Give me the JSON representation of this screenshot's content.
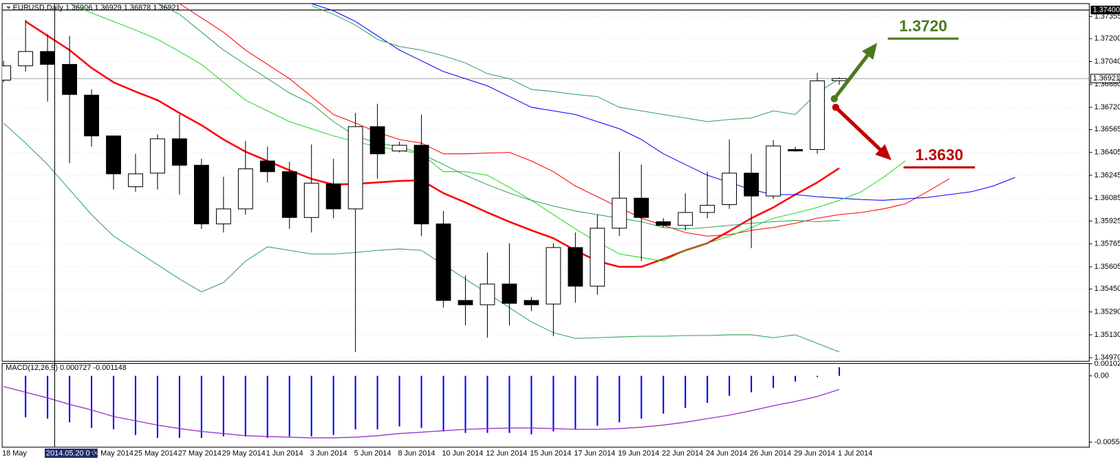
{
  "chart_data": {
    "type": "candlestick",
    "title": "EURUSD,Daily",
    "categories": [
      "18 May",
      null,
      "2014.05.20 0:00",
      null,
      "22 May 2014",
      null,
      "25 May 2014",
      null,
      "27 May 2014",
      null,
      "29 May 2014",
      null,
      "1 Jun 2014",
      null,
      "3 Jun 2014",
      null,
      "5 Jun 2014",
      null,
      "8 Jun 2014",
      null,
      "10 Jun 2014",
      null,
      "12 Jun 2014",
      null,
      "15 Jun 2014",
      null,
      "17 Jun 2014",
      null,
      "19 Jun 2014",
      null,
      "22 Jun 2014",
      null,
      "24 Jun 2014",
      null,
      "26 Jun 2014",
      null,
      "29 Jun 2014",
      null,
      "1 Jul 2014",
      null,
      null,
      null,
      null,
      null,
      null,
      null,
      null
    ],
    "crosshair_index": 2,
    "ohlc": {
      "open": [
        1.3691,
        1.3701,
        1.3711,
        1.3702,
        1.36805,
        1.3652,
        1.36165,
        1.3626,
        1.365,
        1.36315,
        1.35905,
        1.3601,
        1.36345,
        1.3627,
        1.3595,
        1.36185,
        1.3601,
        1.36585,
        1.36415,
        1.36455,
        1.35905,
        1.3537,
        1.3534,
        1.35485,
        1.3537,
        1.35345,
        1.3574,
        1.3547,
        1.35875,
        1.36085,
        1.3592,
        1.35895,
        1.35985,
        1.3604,
        1.3626,
        1.361,
        1.36425,
        1.36425,
        1.36906,
        null,
        null,
        null,
        null,
        null,
        null,
        null,
        null
      ],
      "high": [
        1.37045,
        1.3733,
        1.3723,
        1.3722,
        1.36845,
        1.3652,
        1.36395,
        1.3653,
        1.3667,
        1.3636,
        1.36235,
        1.36485,
        1.36445,
        1.3634,
        1.3646,
        1.3636,
        1.3668,
        1.36745,
        1.3648,
        1.3667,
        1.35995,
        1.35545,
        1.35705,
        1.3577,
        1.35395,
        1.3577,
        1.35845,
        1.3597,
        1.3641,
        1.3632,
        1.35945,
        1.3612,
        1.3627,
        1.36495,
        1.36395,
        1.3649,
        1.36445,
        1.3696,
        1.36929,
        null,
        null,
        null,
        null,
        null,
        null,
        null,
        null
      ],
      "low": [
        1.36895,
        1.3697,
        1.3676,
        1.3633,
        1.36445,
        1.36145,
        1.3613,
        1.36145,
        1.3611,
        1.3587,
        1.35845,
        1.3597,
        1.36195,
        1.3587,
        1.35845,
        1.35945,
        1.3501,
        1.3622,
        1.36405,
        1.3582,
        1.3532,
        1.35195,
        1.3511,
        1.35195,
        1.35295,
        1.3512,
        1.35355,
        1.3541,
        1.3582,
        1.35645,
        1.3588,
        1.3586,
        1.35945,
        1.3601,
        1.35735,
        1.3608,
        1.3641,
        1.36395,
        1.36878,
        null,
        null,
        null,
        null,
        null,
        null,
        null,
        null
      ],
      "close": [
        1.3701,
        1.3711,
        1.3702,
        1.3681,
        1.3652,
        1.36255,
        1.36255,
        1.365,
        1.36315,
        1.35905,
        1.3601,
        1.3629,
        1.3627,
        1.3595,
        1.3619,
        1.3601,
        1.36585,
        1.36395,
        1.36455,
        1.35905,
        1.3537,
        1.3534,
        1.35485,
        1.3535,
        1.3534,
        1.3574,
        1.3547,
        1.35875,
        1.36085,
        1.3595,
        1.35895,
        1.35985,
        1.36035,
        1.3626,
        1.361,
        1.3645,
        1.36415,
        1.36905,
        1.36921,
        null,
        null,
        null,
        null,
        null,
        null,
        null,
        null
      ],
      "up_color": "#ffffff",
      "down_color": "#000000",
      "outline": "#000000"
    },
    "series": [
      {
        "color": "#ff0000",
        "width": 2.5,
        "values": [
          null,
          1.3732,
          1.3722,
          1.3712,
          1.36995,
          1.36895,
          1.3683,
          1.3677,
          1.3668,
          1.36595,
          1.36495,
          1.3641,
          1.36345,
          1.3628,
          1.3622,
          1.3618,
          1.36185,
          1.36195,
          1.36205,
          1.3621,
          1.3612,
          1.36055,
          1.35985,
          1.3592,
          1.3586,
          1.35805,
          1.3572,
          1.35645,
          1.35605,
          1.35605,
          1.3566,
          1.3572,
          1.3577,
          1.35855,
          1.35945,
          1.3602,
          1.3611,
          1.36195,
          1.36295,
          null,
          null,
          null,
          null,
          null,
          null,
          null,
          null
        ]
      },
      {
        "color": "#ff0000",
        "width": 1,
        "values": [
          null,
          null,
          null,
          null,
          null,
          null,
          null,
          null,
          1.37445,
          1.37345,
          1.37245,
          1.3712,
          1.3702,
          1.3692,
          1.36795,
          1.3667,
          1.3661,
          1.36545,
          1.36495,
          1.3647,
          1.36395,
          1.36395,
          1.364,
          1.36405,
          1.36345,
          1.3627,
          1.3617,
          1.36095,
          1.3602,
          1.35945,
          1.35895,
          1.35845,
          1.3582,
          1.3583,
          1.3586,
          1.3588,
          1.3591,
          1.35945,
          1.3597,
          1.35985,
          1.3601,
          1.36045,
          1.3613,
          1.3622,
          null,
          null,
          null
        ]
      },
      {
        "color": "#0000ff",
        "width": 1,
        "values": [
          null,
          null,
          null,
          null,
          null,
          null,
          null,
          null,
          null,
          null,
          null,
          null,
          null,
          null,
          1.37445,
          1.37395,
          1.3732,
          1.3722,
          1.3712,
          1.37045,
          1.3697,
          1.3692,
          1.3687,
          1.36795,
          1.3672,
          1.36695,
          1.3667,
          1.3662,
          1.3657,
          1.36495,
          1.36395,
          1.3632,
          1.36245,
          1.36195,
          1.36145,
          1.3611,
          1.3611,
          1.36095,
          1.36085,
          1.36075,
          1.3607,
          1.3608,
          1.3609,
          1.3611,
          1.3613,
          1.3617,
          1.3623
        ]
      },
      {
        "color": "#1fd81f",
        "width": 1,
        "values": [
          null,
          null,
          null,
          1.37445,
          1.3738,
          1.3732,
          1.3726,
          1.37195,
          1.3711,
          1.3702,
          1.36895,
          1.3677,
          1.36695,
          1.3662,
          1.3657,
          1.3652,
          1.3648,
          1.36445,
          1.3642,
          1.36395,
          1.3627,
          1.3627,
          1.36245,
          1.3616,
          1.3607,
          1.3597,
          1.3587,
          1.3578,
          1.35695,
          1.3567,
          1.35645,
          1.3572,
          1.3577,
          1.3582,
          1.3588,
          1.35945,
          1.3598,
          1.3602,
          1.3607,
          1.3613,
          1.3623,
          1.36345,
          null,
          null,
          null,
          null,
          null
        ]
      },
      {
        "color": "#2ea257",
        "width": 1,
        "values": [
          null,
          null,
          null,
          null,
          null,
          null,
          null,
          1.37445,
          1.3737,
          1.37245,
          1.3712,
          1.3702,
          1.3692,
          1.3682,
          1.36745,
          1.3662,
          1.3652,
          1.3647,
          1.36445,
          1.36395,
          1.3632,
          1.36245,
          1.3618,
          1.3612,
          1.3607,
          1.3603,
          1.35995,
          1.3597,
          1.35945,
          1.3592,
          1.3588,
          1.3587,
          1.3588,
          1.35895,
          1.3591,
          1.3592,
          1.3593,
          1.3592,
          1.3593,
          null,
          null,
          null,
          null,
          null,
          null,
          null,
          null
        ]
      },
      {
        "color": "#2ea257",
        "width": 1,
        "values": [
          null,
          null,
          null,
          null,
          null,
          null,
          null,
          null,
          null,
          null,
          null,
          null,
          null,
          null,
          1.3743,
          1.3737,
          1.37295,
          1.37195,
          1.37145,
          1.3712,
          1.3708,
          1.3703,
          1.36955,
          1.3692,
          1.36845,
          1.3683,
          1.3681,
          1.36795,
          1.3672,
          1.36695,
          1.3667,
          1.36645,
          1.3662,
          1.36635,
          1.36645,
          1.36695,
          1.3667,
          1.3682,
          1.3692,
          null,
          null,
          null,
          null,
          null,
          null,
          null,
          null
        ]
      },
      {
        "color": "#2ea257",
        "width": 1,
        "values": [
          1.3661,
          1.3647,
          1.3632,
          1.36145,
          1.3597,
          1.3582,
          1.3572,
          1.3562,
          1.3552,
          1.3543,
          1.35495,
          1.35645,
          1.35745,
          1.3572,
          1.35695,
          1.35695,
          1.35705,
          1.3572,
          1.3573,
          1.3572,
          1.3562,
          1.3552,
          1.3542,
          1.3532,
          1.3522,
          1.35145,
          1.35105,
          1.3511,
          1.35115,
          1.3512,
          1.3512,
          1.35125,
          1.35125,
          1.3513,
          1.3513,
          1.3511,
          1.3513,
          1.3507,
          1.3501,
          null,
          null,
          null,
          null,
          null,
          null,
          null,
          null
        ]
      }
    ],
    "ylim": [
      1.34945,
      1.37445
    ],
    "yticks": [
      1.37355,
      {
        "value": 1.372,
        "label": "1.37200"
      },
      {
        "value": 1.3704,
        "label": "1.37040"
      },
      {
        "value": 1.3688,
        "label": "1.36880"
      },
      {
        "value": 1.3672,
        "label": "1.36720"
      },
      1.36565,
      1.36405,
      1.36245,
      1.36085,
      1.35925,
      1.35765,
      1.35605,
      {
        "value": 1.3545,
        "label": "1.35450"
      },
      {
        "value": 1.3529,
        "label": "1.35290"
      },
      {
        "value": 1.3513,
        "label": "1.35130"
      },
      {
        "value": 1.3497,
        "label": "1.34970"
      }
    ],
    "top_level": {
      "value": 1.374,
      "label": "1.37400"
    },
    "grid": true,
    "annotations": [
      {
        "label": "1.3720",
        "value": 1.372,
        "color": "#4a7a1e"
      },
      {
        "label": "1.3630",
        "value": 1.363,
        "color": "#c00000"
      }
    ],
    "macd": {
      "title": "MACD(12,26,9)",
      "histogram": {
        "color": "#0000ff",
        "values": [
          null,
          -0.00349,
          -0.00361,
          -0.00391,
          -0.00439,
          -0.00451,
          -0.00499,
          -0.00523,
          -0.00523,
          -0.00523,
          -0.00511,
          -0.00511,
          -0.00523,
          -0.00511,
          -0.00511,
          -0.00499,
          -0.00451,
          -0.00451,
          -0.00427,
          -0.00439,
          -0.00469,
          -0.00481,
          -0.00481,
          -0.00481,
          -0.00493,
          -0.00469,
          -0.00451,
          -0.00421,
          -0.00391,
          -0.00361,
          -0.00319,
          -0.0027,
          -0.00228,
          -0.00168,
          -0.00138,
          -0.00102,
          -0.00048,
          -0.0001,
          0.000727,
          null,
          null,
          null,
          null,
          null,
          null,
          null,
          null
        ]
      },
      "signal": {
        "color": "#9932cc",
        "values": [
          -0.0009,
          -0.00138,
          -0.00186,
          -0.0024,
          -0.00288,
          -0.00343,
          -0.00379,
          -0.00415,
          -0.00445,
          -0.00469,
          -0.00487,
          -0.00505,
          -0.00511,
          -0.00517,
          -0.00523,
          -0.00523,
          -0.00517,
          -0.00505,
          -0.00487,
          -0.00475,
          -0.00463,
          -0.00451,
          -0.00445,
          -0.00439,
          -0.00439,
          -0.00445,
          -0.00451,
          -0.00451,
          -0.00445,
          -0.00433,
          -0.00415,
          -0.00391,
          -0.00361,
          -0.00331,
          -0.00294,
          -0.00252,
          -0.00216,
          -0.00174,
          -0.001148,
          null,
          null,
          null,
          null,
          null,
          null,
          null,
          null
        ]
      },
      "ylim": [
        -0.00601,
        0.00105
      ],
      "yticks": [
        0.001028,
        {
          "value": 0,
          "label": "0.00"
        },
        -0.00559
      ]
    }
  }
}
